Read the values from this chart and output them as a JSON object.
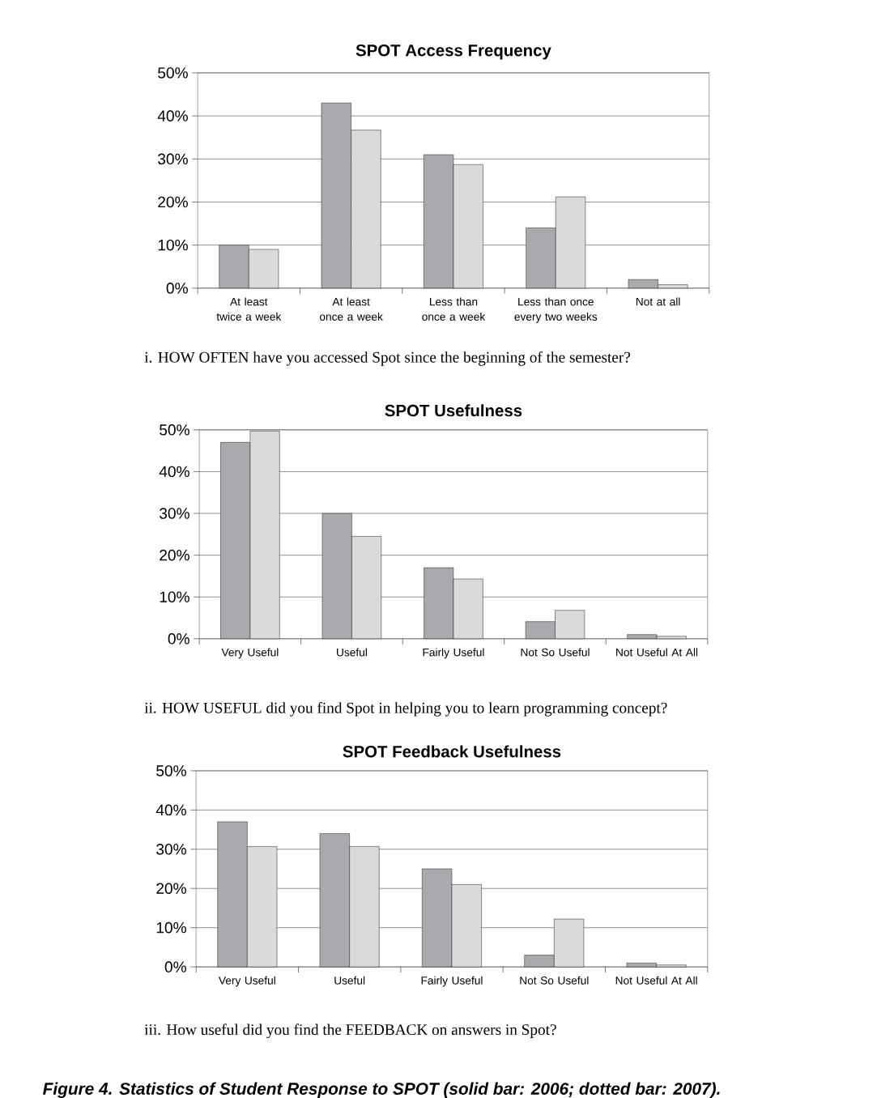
{
  "chart_data": [
    {
      "type": "bar",
      "title": "SPOT Access Frequency",
      "categories": [
        "At least twice a week",
        "At least once a week",
        "Less than once a week",
        "Less than once every two weeks",
        "Not at all"
      ],
      "series": [
        {
          "color": "#a9aaae",
          "values": [
            10,
            43,
            31,
            14,
            2
          ]
        },
        {
          "color": "#d9dadc",
          "values": [
            9,
            36.7,
            28.7,
            21.2,
            0.8
          ]
        }
      ],
      "ylim": [
        0,
        50
      ],
      "yticks": [
        {
          "value": 0,
          "label": "0%"
        },
        {
          "value": 10,
          "label": "10%"
        },
        {
          "value": 20,
          "label": "20%"
        },
        {
          "value": 30,
          "label": "30%"
        },
        {
          "value": 40,
          "label": "40%"
        },
        {
          "value": 50,
          "label": "50%"
        }
      ],
      "grid": "y",
      "annotations": [
        "i. HOW OFTEN have you accessed Spot since the beginning of the semester?"
      ]
    },
    {
      "type": "bar",
      "title": "SPOT Usefulness",
      "categories": [
        "Very Useful",
        "Useful",
        "Fairly Useful",
        "Not So Useful",
        "Not Useful At All"
      ],
      "series": [
        {
          "color": "#a9aaae",
          "values": [
            47,
            30,
            17,
            4.1,
            1
          ]
        },
        {
          "color": "#d9dadc",
          "values": [
            49.7,
            24.5,
            14.3,
            6.8,
            0.6
          ]
        }
      ],
      "ylim": [
        0,
        50
      ],
      "yticks": [
        {
          "value": 0,
          "label": "0%"
        },
        {
          "value": 10,
          "label": "10%"
        },
        {
          "value": 20,
          "label": "20%"
        },
        {
          "value": 30,
          "label": "30%"
        },
        {
          "value": 40,
          "label": "40%"
        },
        {
          "value": 50,
          "label": "50%"
        }
      ],
      "grid": "y",
      "annotations": [
        "ii. HOW USEFUL did you find Spot in helping you to learn programming concept?"
      ]
    },
    {
      "type": "bar",
      "title": "SPOT Feedback Usefulness",
      "categories": [
        "Very Useful",
        "Useful",
        "Fairly Useful",
        "Not So Useful",
        "Not Useful At All"
      ],
      "series": [
        {
          "color": "#a9aaae",
          "values": [
            37,
            34,
            25,
            3,
            1
          ]
        },
        {
          "color": "#d9dadc",
          "values": [
            30.7,
            30.7,
            21,
            12.2,
            0.5
          ]
        }
      ],
      "ylim": [
        0,
        50
      ],
      "yticks": [
        {
          "value": 0,
          "label": "0%"
        },
        {
          "value": 10,
          "label": "10%"
        },
        {
          "value": 20,
          "label": "20%"
        },
        {
          "value": 30,
          "label": "30%"
        },
        {
          "value": 40,
          "label": "40%"
        },
        {
          "value": 50,
          "label": "50%"
        }
      ],
      "grid": "y",
      "annotations": [
        "iii. How useful did you find the FEEDBACK on answers in Spot?",
        "Figure 4. Statistics of Student Response to SPOT (solid bar: 2006; dotted bar: 2007)."
      ]
    }
  ]
}
